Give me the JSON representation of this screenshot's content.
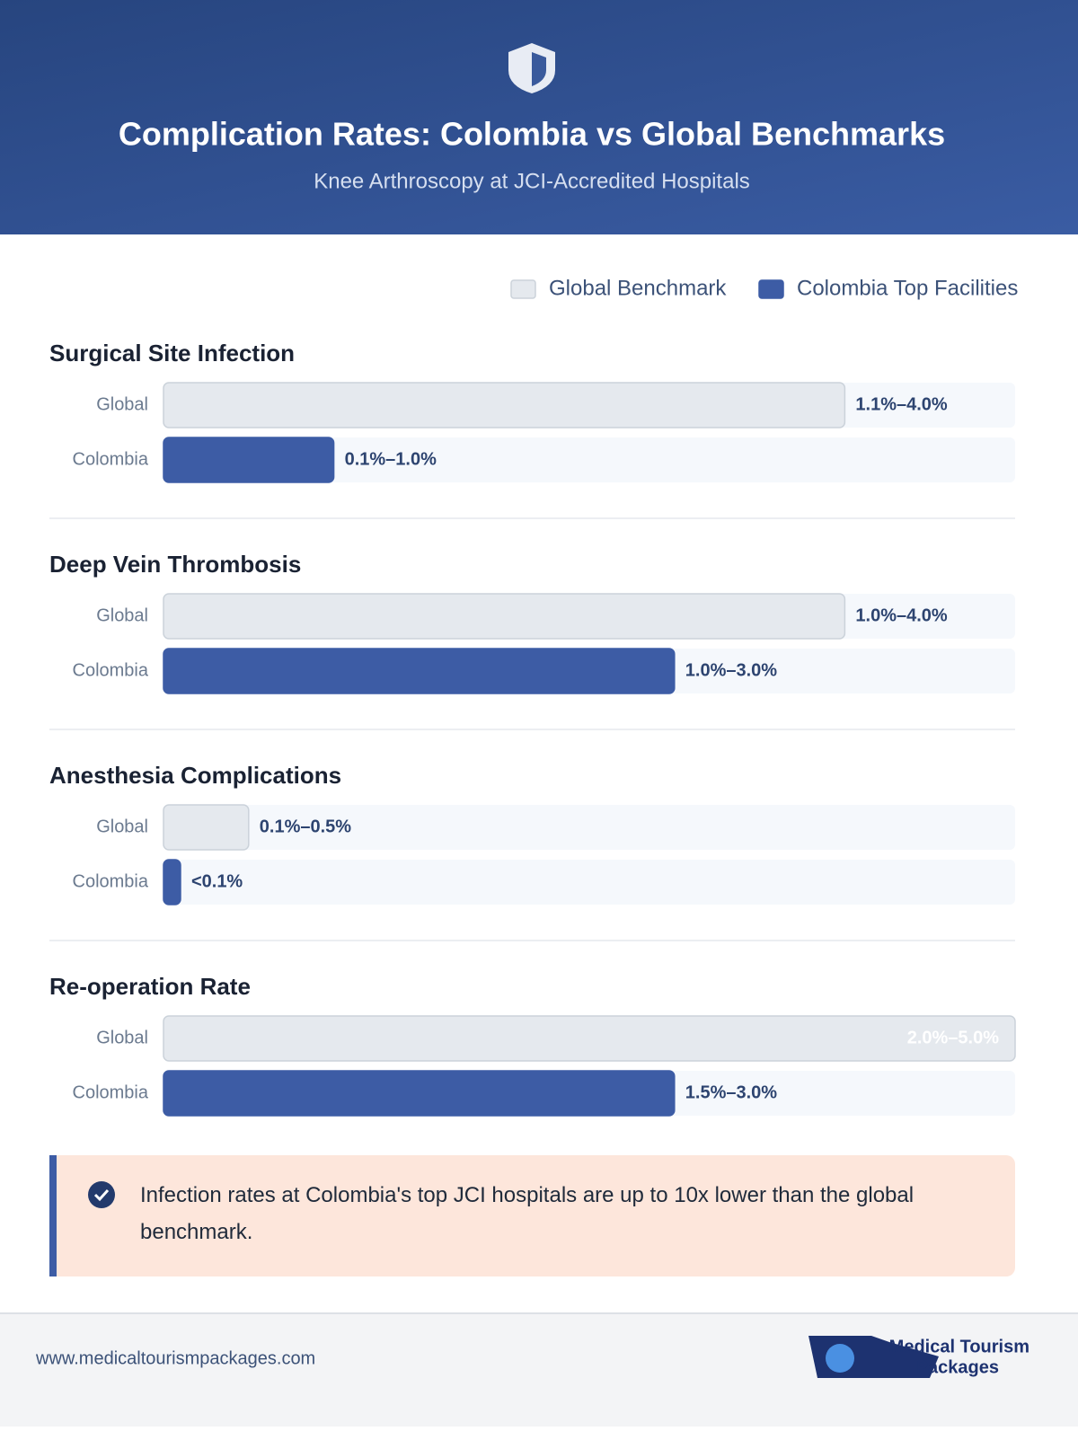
{
  "chart_data": {
    "type": "bar",
    "orientation": "horizontal",
    "title": "Complication Rates: Colombia vs Global Benchmarks",
    "subtitle": "Knee Arthroscopy at JCI-Accredited Hospitals",
    "xlim": [
      0,
      5
    ],
    "categories": [
      "Surgical Site Infection",
      "Deep Vein Thrombosis",
      "Anesthesia Complications",
      "Re-operation Rate"
    ],
    "series": [
      {
        "name": "Global Benchmark",
        "label": "Global",
        "color": "#e5e9ee",
        "border": "#cbd2da",
        "low": [
          1.1,
          1.0,
          0.1,
          2.0
        ],
        "values": [
          4.0,
          4.0,
          0.5,
          5.0
        ],
        "value_labels": [
          "1.1%–4.0%",
          "1.0%–4.0%",
          "0.1%–0.5%",
          "2.0%–5.0%"
        ]
      },
      {
        "name": "Colombia Top Facilities",
        "label": "Colombia",
        "color": "#3d5ca5",
        "border": "#3d5ca5",
        "low": [
          0.1,
          1.0,
          null,
          1.5
        ],
        "values": [
          1.0,
          3.0,
          0.1,
          3.0
        ],
        "value_labels": [
          "0.1%–1.0%",
          "1.0%–3.0%",
          "<0.1%",
          "1.5%–3.0%"
        ]
      }
    ],
    "callout": "Infection rates at Colombia's top JCI hospitals are up to 10x lower than the global benchmark."
  },
  "footer": {
    "url": "www.medicaltourismpackages.com",
    "logo": [
      "Medical Tourism",
      "Packages"
    ]
  }
}
